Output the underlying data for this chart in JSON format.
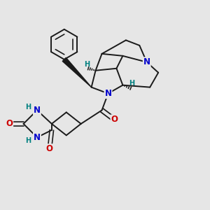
{
  "bg_color": "#e6e6e6",
  "bond_color": "#1a1a1a",
  "N_color": "#0000cc",
  "O_color": "#cc0000",
  "H_color": "#008080",
  "font_size_atom": 8.5,
  "font_size_H": 7.0,
  "line_width": 1.4,
  "fig_size": [
    3.0,
    3.0
  ],
  "dpi": 100,
  "xlim": [
    0,
    10
  ],
  "ylim": [
    0,
    10
  ]
}
